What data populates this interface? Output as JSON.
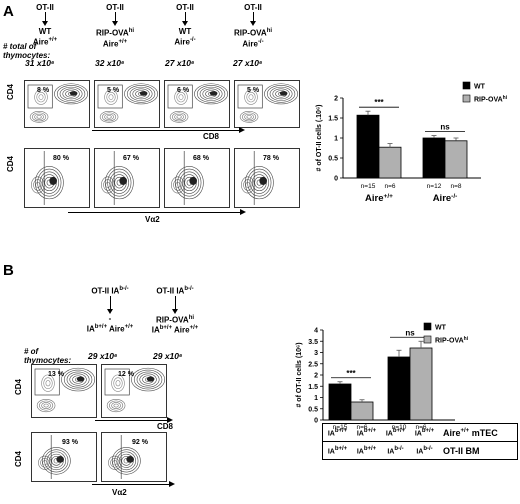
{
  "panel_a": {
    "letter": "A",
    "group_headers": [
      {
        "line1": "OT-II",
        "line2": "WT",
        "line3": "Aire+/+"
      },
      {
        "line1": "OT-II",
        "line2": "RIP-OVAhi",
        "line3": "Aire+/+"
      },
      {
        "line1": "OT-II",
        "line2": "WT",
        "line3": "Aire-/-"
      },
      {
        "line1": "OT-II",
        "line2": "RIP-OVAhi",
        "line3": "Aire-/-"
      }
    ],
    "thymocytes_label_1": "# total of",
    "thymocytes_label_2": "thymocytes:",
    "thymocytes_values": [
      "31 x10⁶",
      "32 x10⁶",
      "27 x10⁶",
      "27 x10⁶"
    ],
    "cd4_cd8_pcts": [
      "8 %",
      "5 %",
      "6 %",
      "5 %"
    ],
    "va2_pcts": [
      "80 %",
      "67 %",
      "68 %",
      "78 %"
    ],
    "cd4_label": "CD4",
    "cd8_label": "CD8",
    "va2_label": "Vα2"
  },
  "panel_b": {
    "letter": "B",
    "group_headers": [
      {
        "line1": "OT-II IAb-/-",
        "line2": "-",
        "line3": "IAb+/+ Aire+/+"
      },
      {
        "line1": "OT-II IAb-/-",
        "line2": "RIP-OVAhi",
        "line3": "IAb+/+ Aire+/+"
      }
    ],
    "thymocytes_label_1": "# of",
    "thymocytes_label_2": "thymocytes:",
    "thymocytes_values": [
      "29 x10⁶",
      "29 x10⁶"
    ],
    "cd4_cd8_pcts": [
      "13 %",
      "12 %"
    ],
    "va2_pcts": [
      "93 %",
      "92 %"
    ],
    "cd4_label": "CD4",
    "cd8_label": "CD8",
    "va2_label": "Vα2",
    "table_rows": [
      {
        "cells": [
          "IAb+/+",
          "IAb+/+",
          "IAb+/+",
          "IAb+/+"
        ],
        "label": "Aire+/+ mTEC"
      },
      {
        "cells": [
          "IAb+/+",
          "IAb+/+",
          "IAb-/-",
          "IAb-/-"
        ],
        "label": "OT-II BM"
      }
    ]
  },
  "chart_data": [
    {
      "type": "bar",
      "ylabel": "# of OT-II cells (.10⁶)",
      "ylim": [
        0,
        2
      ],
      "yticks": [
        "0",
        "0.5",
        "1",
        "1.5",
        "2"
      ],
      "groups": [
        "Aire+/+",
        "Aire-/-"
      ],
      "series": [
        {
          "name": "WT",
          "color": "#000000",
          "values": [
            1.57,
            1.0
          ],
          "errors": [
            0.1,
            0.06
          ]
        },
        {
          "name": "RIP-OVAhi",
          "color": "#b0b0b0",
          "values": [
            0.77,
            0.93
          ],
          "errors": [
            0.09,
            0.07
          ]
        }
      ],
      "n_labels": [
        "n=15",
        "n=6",
        "n=12",
        "n=8"
      ],
      "significance": [
        "***",
        "ns"
      ],
      "legend": "top-right",
      "legend_entries": [
        "WT",
        "RIP-OVAhi"
      ]
    },
    {
      "type": "bar",
      "ylabel": "# of OT-II cells (10⁶)",
      "ylim": [
        0,
        4
      ],
      "yticks": [
        "0",
        "0.5",
        "1",
        "1.5",
        "2",
        "2.5",
        "3",
        "3.5",
        "4"
      ],
      "series": [
        {
          "name": "WT",
          "color": "#000000",
          "values": [
            1.6,
            2.8
          ],
          "errors": [
            0.1,
            0.3
          ]
        },
        {
          "name": "RIP-OVAhi",
          "color": "#b0b0b0",
          "values": [
            0.8,
            3.2
          ],
          "errors": [
            0.1,
            0.3
          ]
        }
      ],
      "n_labels": [
        "n=15",
        "n=6",
        "n=10",
        "n=6"
      ],
      "significance": [
        "***",
        "ns"
      ],
      "legend": "top-right",
      "legend_entries": [
        "WT",
        "RIP-OVAhi"
      ]
    }
  ]
}
